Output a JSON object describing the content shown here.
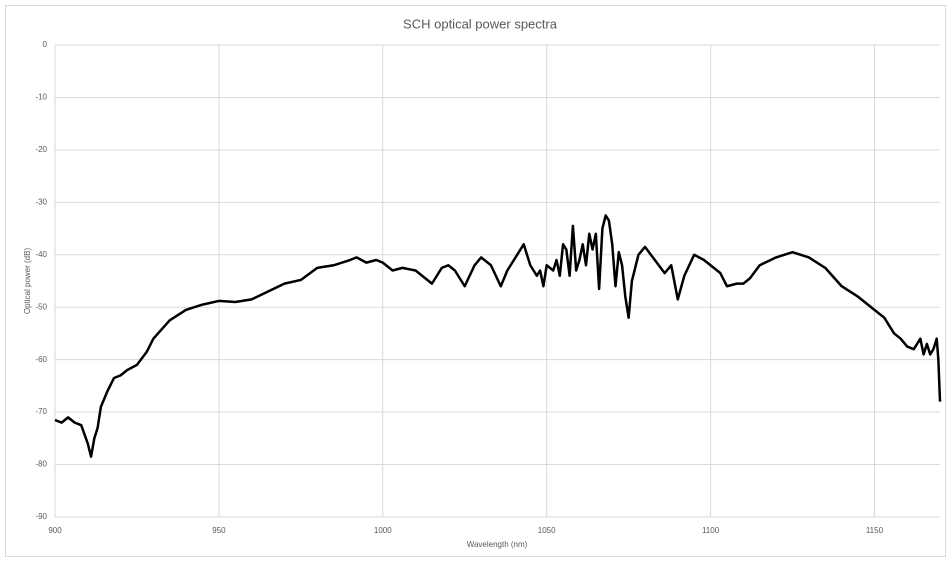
{
  "chart_data": {
    "type": "line",
    "title": "SCH optical power spectra",
    "x_label": "Wavelength (nm)",
    "y_label": "Optical power (dB)",
    "color": "#000000",
    "grid": true,
    "xlim": [
      900,
      1170
    ],
    "xticks": [
      900,
      950,
      1000,
      1050,
      1100,
      1150
    ],
    "ylim": [
      -90,
      0
    ],
    "yticks": [
      0,
      -10,
      -20,
      -30,
      -40,
      -50,
      -60,
      -70,
      -80,
      -90
    ],
    "x": [
      900,
      902,
      904,
      906,
      908,
      910,
      911,
      912,
      913,
      914,
      916,
      918,
      920,
      922,
      925,
      928,
      930,
      935,
      940,
      945,
      950,
      955,
      960,
      965,
      970,
      975,
      980,
      985,
      990,
      992,
      995,
      998,
      1000,
      1003,
      1006,
      1010,
      1015,
      1018,
      1020,
      1022,
      1025,
      1028,
      1030,
      1033,
      1036,
      1038,
      1043,
      1045,
      1047,
      1048,
      1049,
      1050,
      1052,
      1053,
      1054,
      1055,
      1056,
      1057,
      1058,
      1059,
      1060,
      1061,
      1062,
      1063,
      1064,
      1065,
      1066,
      1067,
      1068,
      1069,
      1070,
      1071,
      1072,
      1073,
      1074,
      1075,
      1076,
      1078,
      1080,
      1083,
      1086,
      1088,
      1090,
      1092,
      1095,
      1098,
      1100,
      1103,
      1105,
      1108,
      1110,
      1112,
      1115,
      1120,
      1125,
      1130,
      1135,
      1140,
      1145,
      1150,
      1153,
      1156,
      1158,
      1160,
      1162,
      1164,
      1165,
      1166,
      1167,
      1168,
      1169,
      1169.5,
      1170
    ],
    "values": [
      -71.5,
      -72,
      -71,
      -72,
      -72.5,
      -76,
      -78.5,
      -75,
      -73,
      -69,
      -66,
      -63.5,
      -63,
      -62,
      -61,
      -58.5,
      -56,
      -52.5,
      -50.5,
      -49.5,
      -48.8,
      -49,
      -48.5,
      -47,
      -45.5,
      -44.8,
      -42.5,
      -42,
      -41,
      -40.5,
      -41.5,
      -41,
      -41.5,
      -43,
      -42.5,
      -43,
      -45.5,
      -42.5,
      -42,
      -43,
      -46,
      -42,
      -40.5,
      -42,
      -46,
      -43,
      -38,
      -42,
      -44,
      -43,
      -46,
      -42,
      -43,
      -41,
      -44,
      -38,
      -39,
      -44,
      -34.5,
      -43,
      -41,
      -38,
      -42,
      -36,
      -39,
      -36,
      -46.5,
      -35,
      -32.5,
      -33.5,
      -38,
      -46,
      -39.5,
      -42,
      -48,
      -52,
      -45,
      -40,
      -38.5,
      -41,
      -43.5,
      -42,
      -48.5,
      -44,
      -40,
      -41,
      -42,
      -43.5,
      -46,
      -45.5,
      -45.5,
      -44.5,
      -42,
      -40.5,
      -39.5,
      -40.5,
      -42.5,
      -46,
      -48,
      -50.5,
      -52,
      -55,
      -56,
      -57.5,
      -58,
      -56,
      -59,
      -57,
      -59,
      -58,
      -56,
      -60,
      -68
    ]
  }
}
